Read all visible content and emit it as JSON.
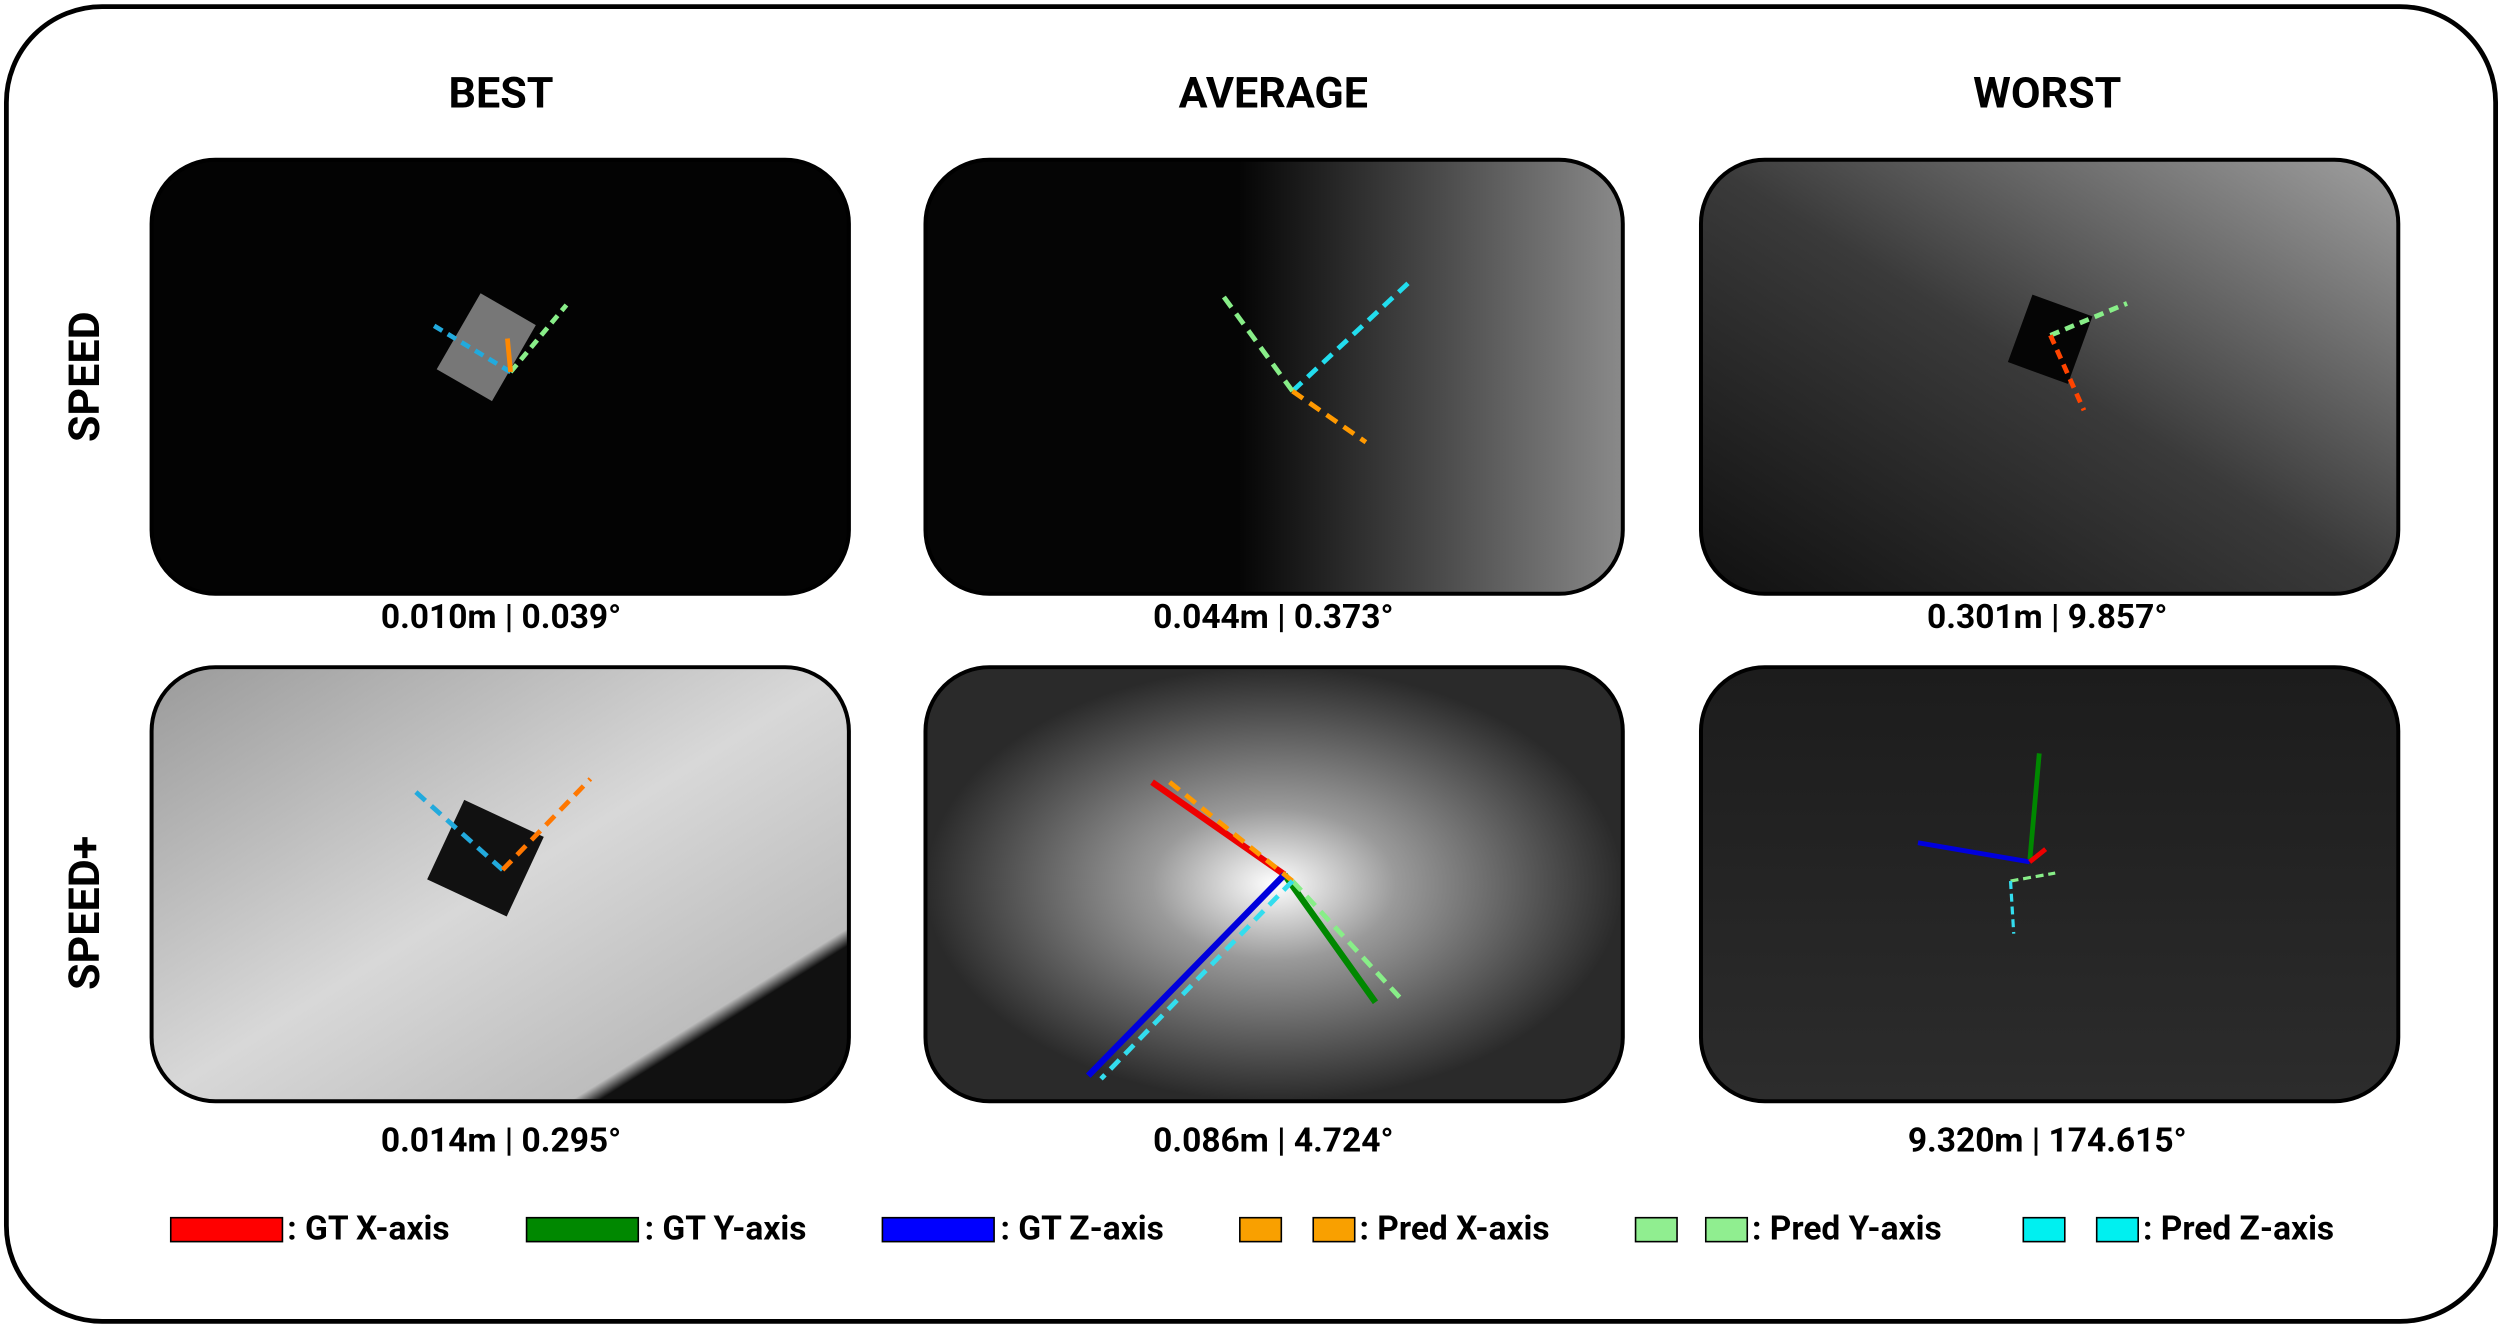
{
  "columns": [
    "BEST",
    "AVERAGE",
    "WORST"
  ],
  "rows": [
    {
      "label": "SPEED",
      "captions": [
        "0.010m | 0.039°",
        "0.044m | 0.373°",
        "0.301m | 9.857°"
      ]
    },
    {
      "label": "SPEED+",
      "captions": [
        "0.014m | 0.295°",
        "0.086m | 4.724°",
        "9.320m | 174.615°"
      ]
    }
  ],
  "legend": [
    ": GT X-axis",
    ": GT Y-axis",
    ": GT Z-axis",
    ": Pred X-axis",
    ": Pred Y-axis",
    ": Pred Z-axis"
  ]
}
